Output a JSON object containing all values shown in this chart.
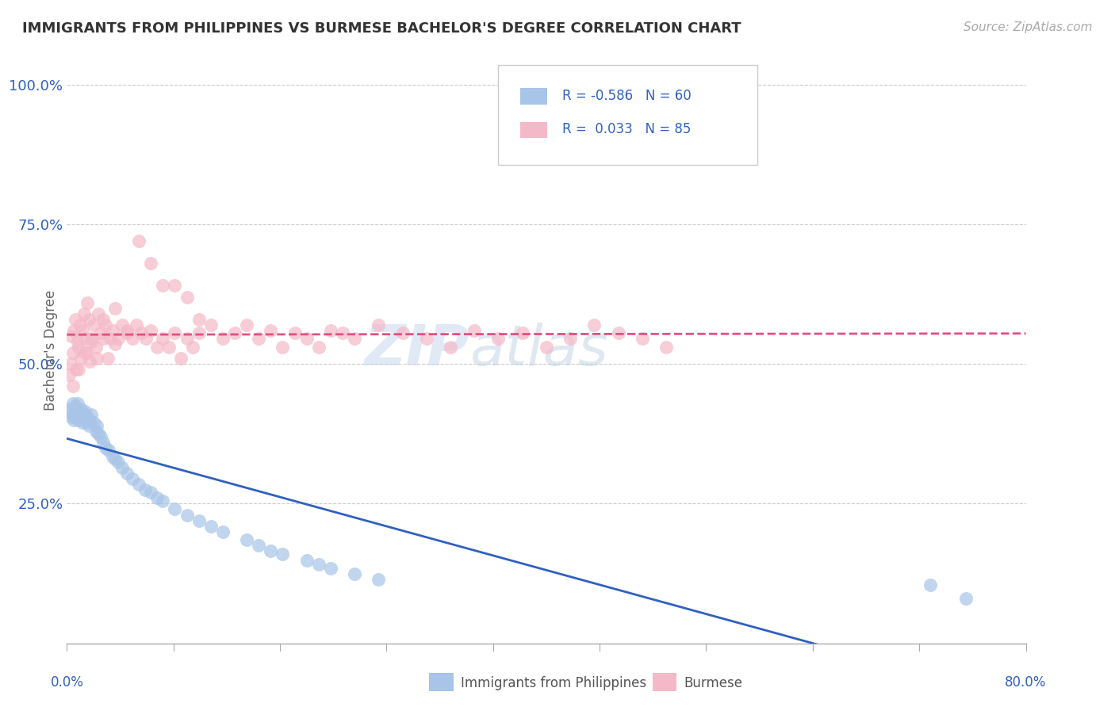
{
  "title": "IMMIGRANTS FROM PHILIPPINES VS BURMESE BACHELOR'S DEGREE CORRELATION CHART",
  "source": "Source: ZipAtlas.com",
  "ylabel": "Bachelor's Degree",
  "yticks": [
    "25.0%",
    "50.0%",
    "75.0%",
    "100.0%"
  ],
  "ytick_vals": [
    0.25,
    0.5,
    0.75,
    1.0
  ],
  "legend_blue_label": "Immigrants from Philippines",
  "legend_pink_label": "Burmese",
  "R_blue": -0.586,
  "N_blue": 60,
  "R_pink": 0.033,
  "N_pink": 85,
  "blue_color": "#a8c4e8",
  "pink_color": "#f5b8c8",
  "blue_line_color": "#3060c0",
  "pink_line_color": "#e05080",
  "watermark_zip": "ZIP",
  "watermark_atlas": "atlas",
  "blue_points_x": [
    0.002,
    0.003,
    0.004,
    0.005,
    0.005,
    0.006,
    0.007,
    0.007,
    0.008,
    0.008,
    0.009,
    0.01,
    0.01,
    0.011,
    0.012,
    0.012,
    0.013,
    0.014,
    0.015,
    0.015,
    0.016,
    0.017,
    0.018,
    0.019,
    0.02,
    0.022,
    0.024,
    0.025,
    0.026,
    0.028,
    0.03,
    0.032,
    0.035,
    0.038,
    0.04,
    0.043,
    0.046,
    0.05,
    0.055,
    0.06,
    0.065,
    0.07,
    0.075,
    0.08,
    0.09,
    0.1,
    0.11,
    0.12,
    0.13,
    0.15,
    0.16,
    0.17,
    0.18,
    0.2,
    0.21,
    0.22,
    0.24,
    0.26,
    0.72,
    0.75
  ],
  "blue_points_y": [
    0.415,
    0.42,
    0.405,
    0.43,
    0.41,
    0.4,
    0.425,
    0.415,
    0.405,
    0.42,
    0.43,
    0.415,
    0.4,
    0.41,
    0.42,
    0.405,
    0.395,
    0.41,
    0.415,
    0.4,
    0.395,
    0.405,
    0.39,
    0.4,
    0.41,
    0.395,
    0.38,
    0.39,
    0.375,
    0.37,
    0.36,
    0.35,
    0.345,
    0.335,
    0.33,
    0.325,
    0.315,
    0.305,
    0.295,
    0.285,
    0.275,
    0.27,
    0.26,
    0.255,
    0.24,
    0.23,
    0.22,
    0.21,
    0.2,
    0.185,
    0.175,
    0.165,
    0.16,
    0.148,
    0.142,
    0.135,
    0.125,
    0.115,
    0.105,
    0.08
  ],
  "pink_points_x": [
    0.002,
    0.003,
    0.004,
    0.005,
    0.006,
    0.007,
    0.008,
    0.009,
    0.01,
    0.011,
    0.012,
    0.013,
    0.014,
    0.015,
    0.016,
    0.017,
    0.018,
    0.019,
    0.02,
    0.022,
    0.024,
    0.026,
    0.028,
    0.03,
    0.032,
    0.034,
    0.036,
    0.038,
    0.04,
    0.043,
    0.046,
    0.05,
    0.055,
    0.058,
    0.062,
    0.066,
    0.07,
    0.075,
    0.08,
    0.085,
    0.09,
    0.095,
    0.1,
    0.105,
    0.11,
    0.12,
    0.13,
    0.14,
    0.15,
    0.16,
    0.17,
    0.18,
    0.19,
    0.2,
    0.21,
    0.22,
    0.23,
    0.24,
    0.26,
    0.28,
    0.3,
    0.32,
    0.34,
    0.36,
    0.38,
    0.4,
    0.42,
    0.44,
    0.46,
    0.48,
    0.5,
    0.005,
    0.01,
    0.015,
    0.02,
    0.025,
    0.03,
    0.04,
    0.05,
    0.06,
    0.07,
    0.08,
    0.09,
    0.1,
    0.11
  ],
  "pink_points_y": [
    0.48,
    0.5,
    0.55,
    0.52,
    0.56,
    0.58,
    0.49,
    0.54,
    0.53,
    0.57,
    0.51,
    0.56,
    0.59,
    0.545,
    0.52,
    0.61,
    0.58,
    0.505,
    0.545,
    0.57,
    0.53,
    0.59,
    0.555,
    0.545,
    0.57,
    0.51,
    0.545,
    0.56,
    0.535,
    0.545,
    0.57,
    0.555,
    0.545,
    0.57,
    0.555,
    0.545,
    0.56,
    0.53,
    0.545,
    0.53,
    0.555,
    0.51,
    0.545,
    0.53,
    0.555,
    0.57,
    0.545,
    0.555,
    0.57,
    0.545,
    0.56,
    0.53,
    0.555,
    0.545,
    0.53,
    0.56,
    0.555,
    0.545,
    0.57,
    0.555,
    0.545,
    0.53,
    0.56,
    0.545,
    0.555,
    0.53,
    0.545,
    0.57,
    0.555,
    0.545,
    0.53,
    0.46,
    0.49,
    0.52,
    0.54,
    0.51,
    0.58,
    0.6,
    0.56,
    0.72,
    0.68,
    0.64,
    0.64,
    0.62,
    0.58
  ]
}
